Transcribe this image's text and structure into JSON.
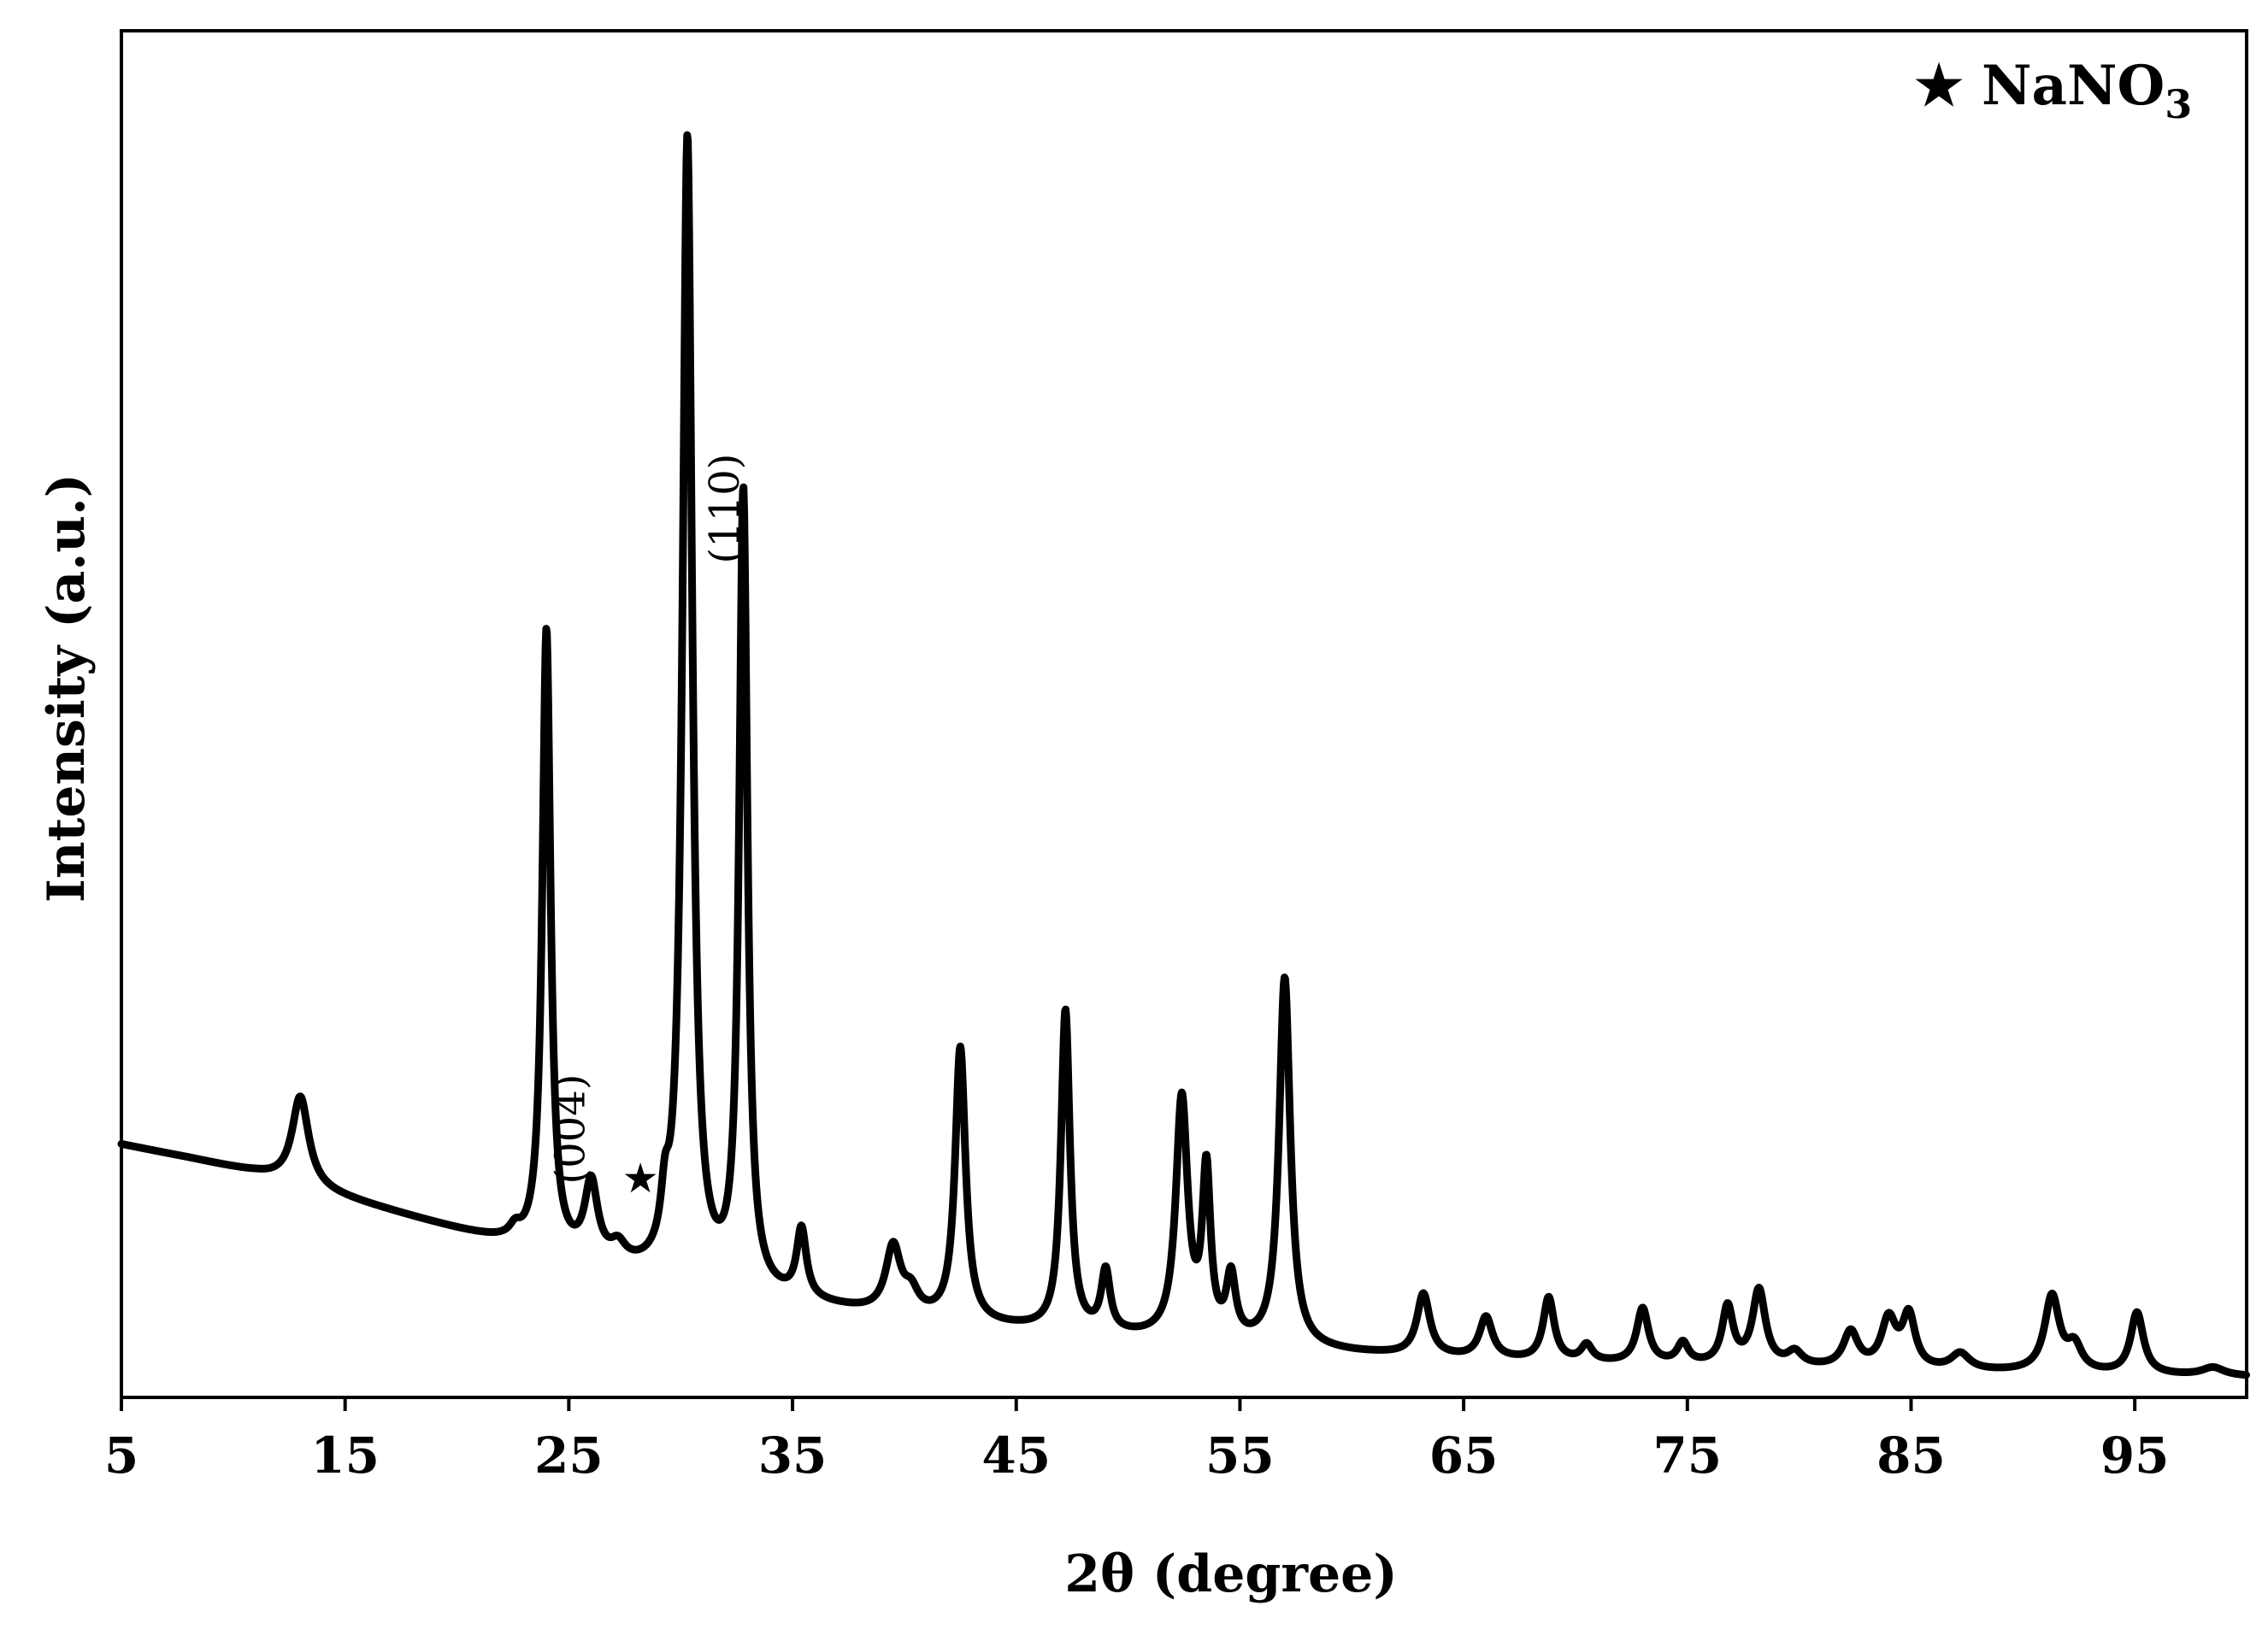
{
  "chart_data": {
    "type": "line",
    "title": "",
    "xlabel": "2θ (degree)",
    "ylabel": "Intensity (a.u.)",
    "xlim": [
      5,
      100
    ],
    "ylim": [
      0,
      100
    ],
    "x_ticks": [
      5,
      15,
      25,
      35,
      45,
      55,
      65,
      75,
      85,
      95
    ],
    "y_ticks_shown": false,
    "grid": false,
    "legend": {
      "position": "top-right",
      "symbol": "★",
      "label": "NaNO",
      "label_sub": "3"
    },
    "annotations": [
      {
        "text": "(004)",
        "x": 25.7,
        "y": 15.6,
        "rotation": -90
      },
      {
        "text": "(110)",
        "x": 32.6,
        "y": 61.0,
        "rotation": -90
      },
      {
        "text": "★",
        "x": 28.2,
        "y": 15.0
      }
    ],
    "series": [
      {
        "baseline": [
          [
            5,
            18.5
          ],
          [
            8,
            17.5
          ],
          [
            11,
            16.4
          ],
          [
            14,
            15.0
          ],
          [
            17,
            13.6
          ],
          [
            20,
            12.2
          ],
          [
            22,
            11.3
          ],
          [
            23,
            10.8
          ],
          [
            24,
            10.4
          ],
          [
            25,
            10.0
          ],
          [
            27,
            9.3
          ],
          [
            29,
            8.6
          ],
          [
            31,
            8.0
          ],
          [
            33,
            7.4
          ],
          [
            35,
            6.9
          ],
          [
            38,
            6.2
          ],
          [
            41,
            5.6
          ],
          [
            44,
            5.1
          ],
          [
            48,
            4.6
          ],
          [
            52,
            4.1
          ],
          [
            56,
            3.6
          ],
          [
            60,
            3.2
          ],
          [
            65,
            2.8
          ],
          [
            70,
            2.5
          ],
          [
            75,
            2.3
          ],
          [
            80,
            2.1
          ],
          [
            85,
            1.9
          ],
          [
            90,
            1.8
          ],
          [
            95,
            1.6
          ],
          [
            100,
            1.5
          ]
        ],
        "peaks": [
          {
            "x": 13.0,
            "height": 6.5,
            "width": 0.45
          },
          {
            "x": 22.6,
            "height": 0.8,
            "width": 0.3
          },
          {
            "x": 24.0,
            "height": 45.5,
            "width": 0.22
          },
          {
            "x": 26.0,
            "height": 5.5,
            "width": 0.35
          },
          {
            "x": 27.2,
            "height": 1.2,
            "width": 0.4
          },
          {
            "x": 29.3,
            "height": 3.5,
            "width": 0.22
          },
          {
            "x": 30.3,
            "height": 83.5,
            "width": 0.26
          },
          {
            "x": 32.8,
            "height": 58.2,
            "width": 0.22
          },
          {
            "x": 35.4,
            "height": 5.0,
            "width": 0.26
          },
          {
            "x": 39.5,
            "height": 4.8,
            "width": 0.4
          },
          {
            "x": 40.3,
            "height": 1.5,
            "width": 0.4
          },
          {
            "x": 42.5,
            "height": 20.0,
            "width": 0.28
          },
          {
            "x": 47.2,
            "height": 23.4,
            "width": 0.24
          },
          {
            "x": 49.0,
            "height": 4.4,
            "width": 0.24
          },
          {
            "x": 52.4,
            "height": 17.5,
            "width": 0.32
          },
          {
            "x": 53.5,
            "height": 12.0,
            "width": 0.22
          },
          {
            "x": 54.6,
            "height": 4.5,
            "width": 0.25
          },
          {
            "x": 57.0,
            "height": 27.0,
            "width": 0.3
          },
          {
            "x": 63.2,
            "height": 4.5,
            "width": 0.35
          },
          {
            "x": 66.0,
            "height": 3.0,
            "width": 0.35
          },
          {
            "x": 68.8,
            "height": 4.6,
            "width": 0.3
          },
          {
            "x": 70.5,
            "height": 1.2,
            "width": 0.3
          },
          {
            "x": 73.0,
            "height": 4.0,
            "width": 0.32
          },
          {
            "x": 74.8,
            "height": 1.5,
            "width": 0.3
          },
          {
            "x": 76.8,
            "height": 4.2,
            "width": 0.3
          },
          {
            "x": 78.2,
            "height": 5.5,
            "width": 0.35
          },
          {
            "x": 79.8,
            "height": 1.0,
            "width": 0.4
          },
          {
            "x": 82.3,
            "height": 2.6,
            "width": 0.4
          },
          {
            "x": 84.0,
            "height": 3.5,
            "width": 0.4
          },
          {
            "x": 84.9,
            "height": 3.8,
            "width": 0.35
          },
          {
            "x": 87.2,
            "height": 1.2,
            "width": 0.5
          },
          {
            "x": 91.3,
            "height": 5.5,
            "width": 0.4
          },
          {
            "x": 92.3,
            "height": 1.8,
            "width": 0.4
          },
          {
            "x": 95.1,
            "height": 4.5,
            "width": 0.35
          },
          {
            "x": 98.5,
            "height": 0.6,
            "width": 0.6
          }
        ]
      }
    ],
    "line_color": "#000000"
  }
}
